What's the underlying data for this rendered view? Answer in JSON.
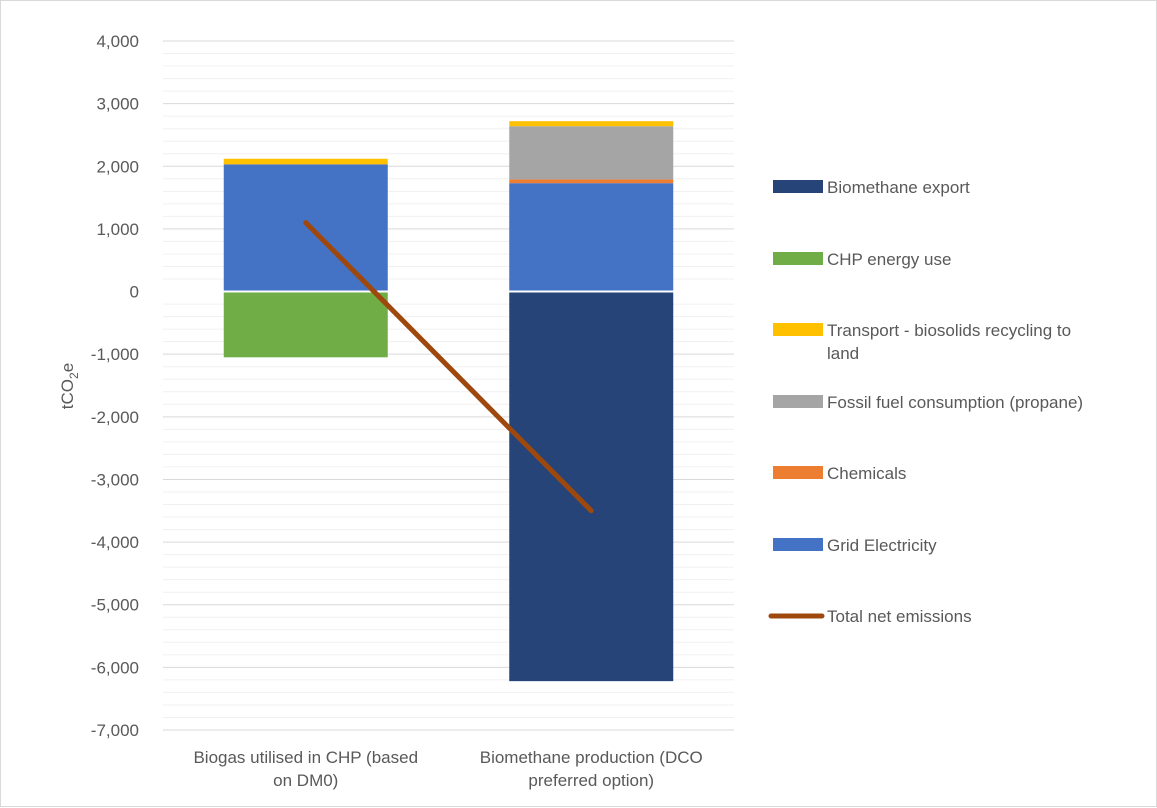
{
  "chart_data": {
    "type": "bar",
    "stacked": true,
    "ylabel": "tCO2e",
    "ylim": [
      -7000,
      4000
    ],
    "ytick_step": 1000,
    "grid": true,
    "legend_position": "right",
    "categories": [
      [
        "Biogas utilised in CHP (based",
        "on DM0)"
      ],
      [
        "Biomethane production (DCO",
        "preferred option)"
      ]
    ],
    "series": [
      {
        "name": "Grid Electricity",
        "color": "#4472c4",
        "values": [
          2030,
          1730
        ]
      },
      {
        "name": "Chemicals",
        "color": "#ed7d31",
        "values": [
          0,
          60
        ]
      },
      {
        "name": "Fossil fuel consumption (propane)",
        "color": "#a5a5a5",
        "values": [
          0,
          850
        ]
      },
      {
        "name": "Transport - biosolids recycling to land",
        "color": "#ffc000",
        "values": [
          90,
          80
        ]
      },
      {
        "name": "CHP energy use",
        "color": "#70ad47",
        "values": [
          -1050,
          0
        ]
      },
      {
        "name": "Biomethane export",
        "color": "#264478",
        "values": [
          0,
          -6220
        ]
      }
    ],
    "line_series": {
      "name": "Total net emissions",
      "color": "#9e480e",
      "values": [
        1100,
        -3500
      ]
    },
    "legend_order": [
      "Biomethane export",
      "CHP energy use",
      [
        "Transport - biosolids recycling to",
        "land"
      ],
      "Fossil fuel consumption (propane)",
      "Chemicals",
      "Grid Electricity",
      "Total net emissions"
    ]
  }
}
